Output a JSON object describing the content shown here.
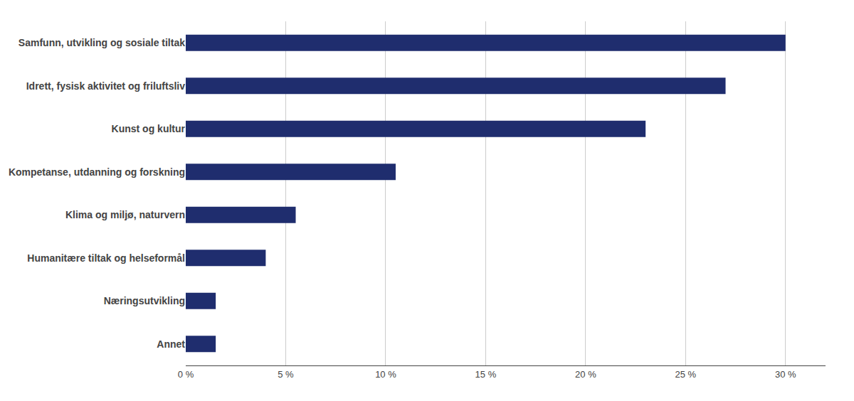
{
  "chart_data": {
    "type": "bar",
    "orientation": "horizontal",
    "categories": [
      "Annet",
      "Næringsutvikling",
      "Humanitære tiltak og helseformål",
      "Klima og miljø, naturvern",
      "Kompetanse, utdanning og forskning",
      "Kunst og kultur",
      "Idrett, fysisk aktivitet og friluftsliv",
      "Samfunn, utvikling og sosiale tiltak"
    ],
    "values": [
      1.5,
      1.5,
      4.0,
      5.5,
      10.5,
      23.0,
      27.0,
      30.0
    ],
    "color": "#1f2d6e",
    "xlim": [
      0,
      32
    ],
    "xticks": [
      {
        "value": 0,
        "label": "0 %"
      },
      {
        "value": 5,
        "label": "5 %"
      },
      {
        "value": 10,
        "label": "10 %"
      },
      {
        "value": 15,
        "label": "15 %"
      },
      {
        "value": 20,
        "label": "20 %"
      },
      {
        "value": 25,
        "label": "25 %"
      },
      {
        "value": 30,
        "label": "30 %"
      }
    ],
    "grid": true
  }
}
